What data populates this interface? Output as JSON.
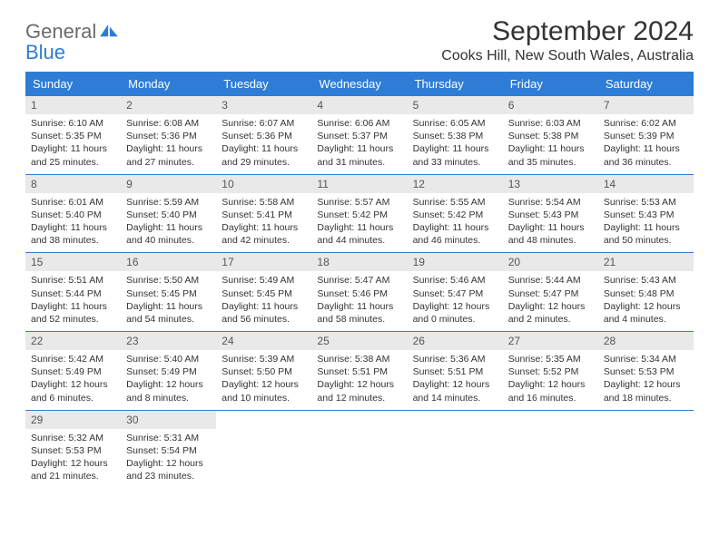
{
  "logo": {
    "text1": "General",
    "text2": "Blue"
  },
  "title": "September 2024",
  "location": "Cooks Hill, New South Wales, Australia",
  "colors": {
    "header_bg": "#2e7cd6",
    "header_text": "#ffffff",
    "daynum_bg": "#e9e9e9",
    "daynum_text": "#555555",
    "body_text": "#333333",
    "logo_gray": "#6b6b6b",
    "logo_blue": "#2e7cd6",
    "row_divider": "#2e7cd6",
    "page_bg": "#ffffff"
  },
  "fonts": {
    "title_size": 30,
    "location_size": 16,
    "header_size": 13,
    "daynum_size": 12,
    "info_size": 10.5
  },
  "dayNames": [
    "Sunday",
    "Monday",
    "Tuesday",
    "Wednesday",
    "Thursday",
    "Friday",
    "Saturday"
  ],
  "weeks": [
    [
      {
        "n": "1",
        "sr": "6:10 AM",
        "ss": "5:35 PM",
        "dh": "11",
        "dm": "25"
      },
      {
        "n": "2",
        "sr": "6:08 AM",
        "ss": "5:36 PM",
        "dh": "11",
        "dm": "27"
      },
      {
        "n": "3",
        "sr": "6:07 AM",
        "ss": "5:36 PM",
        "dh": "11",
        "dm": "29"
      },
      {
        "n": "4",
        "sr": "6:06 AM",
        "ss": "5:37 PM",
        "dh": "11",
        "dm": "31"
      },
      {
        "n": "5",
        "sr": "6:05 AM",
        "ss": "5:38 PM",
        "dh": "11",
        "dm": "33"
      },
      {
        "n": "6",
        "sr": "6:03 AM",
        "ss": "5:38 PM",
        "dh": "11",
        "dm": "35"
      },
      {
        "n": "7",
        "sr": "6:02 AM",
        "ss": "5:39 PM",
        "dh": "11",
        "dm": "36"
      }
    ],
    [
      {
        "n": "8",
        "sr": "6:01 AM",
        "ss": "5:40 PM",
        "dh": "11",
        "dm": "38"
      },
      {
        "n": "9",
        "sr": "5:59 AM",
        "ss": "5:40 PM",
        "dh": "11",
        "dm": "40"
      },
      {
        "n": "10",
        "sr": "5:58 AM",
        "ss": "5:41 PM",
        "dh": "11",
        "dm": "42"
      },
      {
        "n": "11",
        "sr": "5:57 AM",
        "ss": "5:42 PM",
        "dh": "11",
        "dm": "44"
      },
      {
        "n": "12",
        "sr": "5:55 AM",
        "ss": "5:42 PM",
        "dh": "11",
        "dm": "46"
      },
      {
        "n": "13",
        "sr": "5:54 AM",
        "ss": "5:43 PM",
        "dh": "11",
        "dm": "48"
      },
      {
        "n": "14",
        "sr": "5:53 AM",
        "ss": "5:43 PM",
        "dh": "11",
        "dm": "50"
      }
    ],
    [
      {
        "n": "15",
        "sr": "5:51 AM",
        "ss": "5:44 PM",
        "dh": "11",
        "dm": "52"
      },
      {
        "n": "16",
        "sr": "5:50 AM",
        "ss": "5:45 PM",
        "dh": "11",
        "dm": "54"
      },
      {
        "n": "17",
        "sr": "5:49 AM",
        "ss": "5:45 PM",
        "dh": "11",
        "dm": "56"
      },
      {
        "n": "18",
        "sr": "5:47 AM",
        "ss": "5:46 PM",
        "dh": "11",
        "dm": "58"
      },
      {
        "n": "19",
        "sr": "5:46 AM",
        "ss": "5:47 PM",
        "dh": "12",
        "dm": "0"
      },
      {
        "n": "20",
        "sr": "5:44 AM",
        "ss": "5:47 PM",
        "dh": "12",
        "dm": "2"
      },
      {
        "n": "21",
        "sr": "5:43 AM",
        "ss": "5:48 PM",
        "dh": "12",
        "dm": "4"
      }
    ],
    [
      {
        "n": "22",
        "sr": "5:42 AM",
        "ss": "5:49 PM",
        "dh": "12",
        "dm": "6"
      },
      {
        "n": "23",
        "sr": "5:40 AM",
        "ss": "5:49 PM",
        "dh": "12",
        "dm": "8"
      },
      {
        "n": "24",
        "sr": "5:39 AM",
        "ss": "5:50 PM",
        "dh": "12",
        "dm": "10"
      },
      {
        "n": "25",
        "sr": "5:38 AM",
        "ss": "5:51 PM",
        "dh": "12",
        "dm": "12"
      },
      {
        "n": "26",
        "sr": "5:36 AM",
        "ss": "5:51 PM",
        "dh": "12",
        "dm": "14"
      },
      {
        "n": "27",
        "sr": "5:35 AM",
        "ss": "5:52 PM",
        "dh": "12",
        "dm": "16"
      },
      {
        "n": "28",
        "sr": "5:34 AM",
        "ss": "5:53 PM",
        "dh": "12",
        "dm": "18"
      }
    ],
    [
      {
        "n": "29",
        "sr": "5:32 AM",
        "ss": "5:53 PM",
        "dh": "12",
        "dm": "21"
      },
      {
        "n": "30",
        "sr": "5:31 AM",
        "ss": "5:54 PM",
        "dh": "12",
        "dm": "23"
      },
      null,
      null,
      null,
      null,
      null
    ]
  ],
  "labels": {
    "sunrise": "Sunrise: ",
    "sunset": "Sunset: ",
    "daylight1": "Daylight: ",
    "daylight2": " hours and ",
    "daylight3": " minutes."
  }
}
